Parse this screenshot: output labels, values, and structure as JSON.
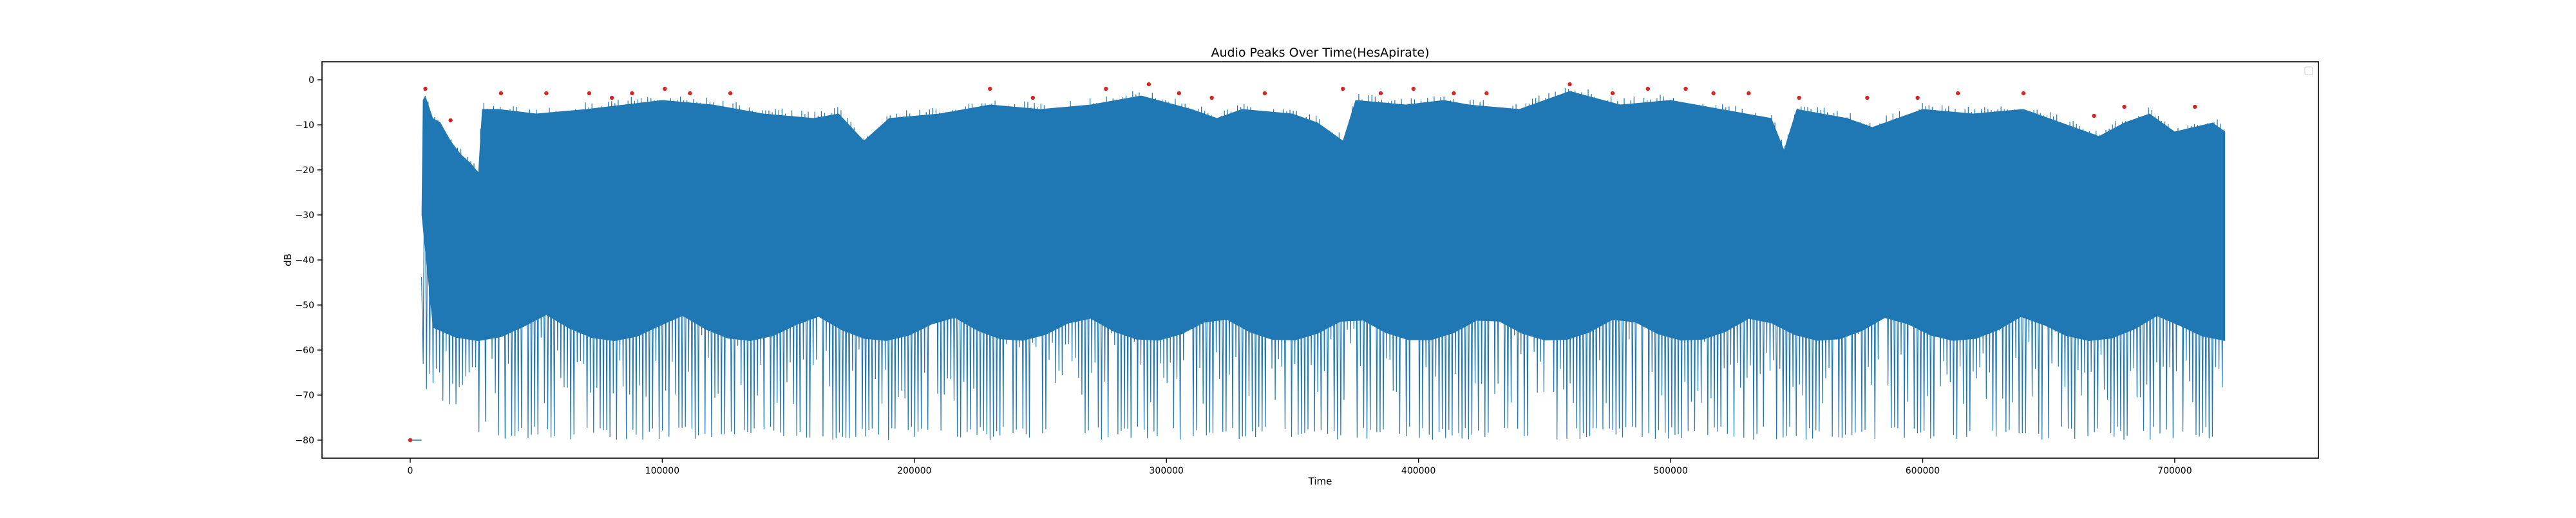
{
  "chart_data": {
    "type": "line",
    "title": "Audio Peaks Over Time(HesApirate)",
    "xlabel": "Time",
    "ylabel": "dB",
    "xlim": [
      -35000,
      757000
    ],
    "ylim": [
      -84,
      4
    ],
    "x_ticks": [
      0,
      100000,
      200000,
      300000,
      400000,
      500000,
      600000,
      700000
    ],
    "x_tick_labels": [
      "0",
      "100000",
      "200000",
      "300000",
      "400000",
      "500000",
      "600000",
      "700000"
    ],
    "y_ticks": [
      0,
      -10,
      -20,
      -30,
      -40,
      -50,
      -60,
      -70,
      -80
    ],
    "y_tick_labels": [
      "0",
      "−10",
      "−20",
      "−30",
      "−40",
      "−50",
      "−60",
      "−70",
      "−80"
    ],
    "grid": false,
    "legend": "top-right (empty)",
    "colors": {
      "line": "#1f77b4",
      "peak_marker": "#d62728"
    },
    "series": [
      {
        "x_start": 0,
        "x_end": 720000,
        "floor_db": -80,
        "onset_x": 4500,
        "envelope_upper": [
          [
            0,
            -80
          ],
          [
            4000,
            -80
          ],
          [
            5000,
            -3
          ],
          [
            6000,
            -2
          ],
          [
            9000,
            -7
          ],
          [
            12000,
            -8
          ],
          [
            16000,
            -12
          ],
          [
            20000,
            -15
          ],
          [
            24000,
            -17
          ],
          [
            27000,
            -19
          ],
          [
            28500,
            -5
          ],
          [
            35000,
            -5
          ],
          [
            50000,
            -6
          ],
          [
            70000,
            -5
          ],
          [
            100000,
            -3
          ],
          [
            120000,
            -4
          ],
          [
            140000,
            -6
          ],
          [
            160000,
            -7
          ],
          [
            170000,
            -6
          ],
          [
            180000,
            -12
          ],
          [
            190000,
            -7
          ],
          [
            210000,
            -6
          ],
          [
            230000,
            -4
          ],
          [
            250000,
            -5
          ],
          [
            270000,
            -4
          ],
          [
            290000,
            -2
          ],
          [
            310000,
            -5
          ],
          [
            320000,
            -7
          ],
          [
            330000,
            -5
          ],
          [
            350000,
            -6
          ],
          [
            360000,
            -8
          ],
          [
            370000,
            -12
          ],
          [
            375000,
            -3
          ],
          [
            395000,
            -4
          ],
          [
            410000,
            -3
          ],
          [
            420000,
            -4
          ],
          [
            440000,
            -5
          ],
          [
            460000,
            -1
          ],
          [
            480000,
            -4
          ],
          [
            500000,
            -3
          ],
          [
            520000,
            -5
          ],
          [
            540000,
            -7
          ],
          [
            545000,
            -14
          ],
          [
            550000,
            -5
          ],
          [
            570000,
            -7
          ],
          [
            580000,
            -9
          ],
          [
            600000,
            -5
          ],
          [
            620000,
            -6
          ],
          [
            640000,
            -5
          ],
          [
            660000,
            -9
          ],
          [
            670000,
            -11
          ],
          [
            680000,
            -8
          ],
          [
            690000,
            -6
          ],
          [
            700000,
            -10
          ],
          [
            715000,
            -8
          ],
          [
            720000,
            -10
          ]
        ],
        "envelope_lower": [
          [
            5000,
            -60
          ],
          [
            40000,
            -80
          ],
          [
            720000,
            -80
          ]
        ]
      }
    ],
    "peaks": [
      {
        "x": 0,
        "y": -80
      },
      {
        "x": 6000,
        "y": -2
      },
      {
        "x": 16000,
        "y": -9
      },
      {
        "x": 36000,
        "y": -3
      },
      {
        "x": 54000,
        "y": -3
      },
      {
        "x": 71000,
        "y": -3
      },
      {
        "x": 80000,
        "y": -4
      },
      {
        "x": 88000,
        "y": -3
      },
      {
        "x": 101000,
        "y": -2
      },
      {
        "x": 111000,
        "y": -3
      },
      {
        "x": 127000,
        "y": -3
      },
      {
        "x": 230000,
        "y": -2
      },
      {
        "x": 247000,
        "y": -4
      },
      {
        "x": 276000,
        "y": -2
      },
      {
        "x": 293000,
        "y": -1
      },
      {
        "x": 305000,
        "y": -3
      },
      {
        "x": 318000,
        "y": -4
      },
      {
        "x": 339000,
        "y": -3
      },
      {
        "x": 370000,
        "y": -2
      },
      {
        "x": 385000,
        "y": -3
      },
      {
        "x": 398000,
        "y": -2
      },
      {
        "x": 414000,
        "y": -3
      },
      {
        "x": 427000,
        "y": -3
      },
      {
        "x": 460000,
        "y": -1
      },
      {
        "x": 477000,
        "y": -3
      },
      {
        "x": 491000,
        "y": -2
      },
      {
        "x": 506000,
        "y": -2
      },
      {
        "x": 517000,
        "y": -3
      },
      {
        "x": 531000,
        "y": -3
      },
      {
        "x": 551000,
        "y": -4
      },
      {
        "x": 578000,
        "y": -4
      },
      {
        "x": 598000,
        "y": -4
      },
      {
        "x": 614000,
        "y": -3
      },
      {
        "x": 640000,
        "y": -3
      },
      {
        "x": 668000,
        "y": -8
      },
      {
        "x": 680000,
        "y": -6
      },
      {
        "x": 708000,
        "y": -6
      }
    ]
  }
}
